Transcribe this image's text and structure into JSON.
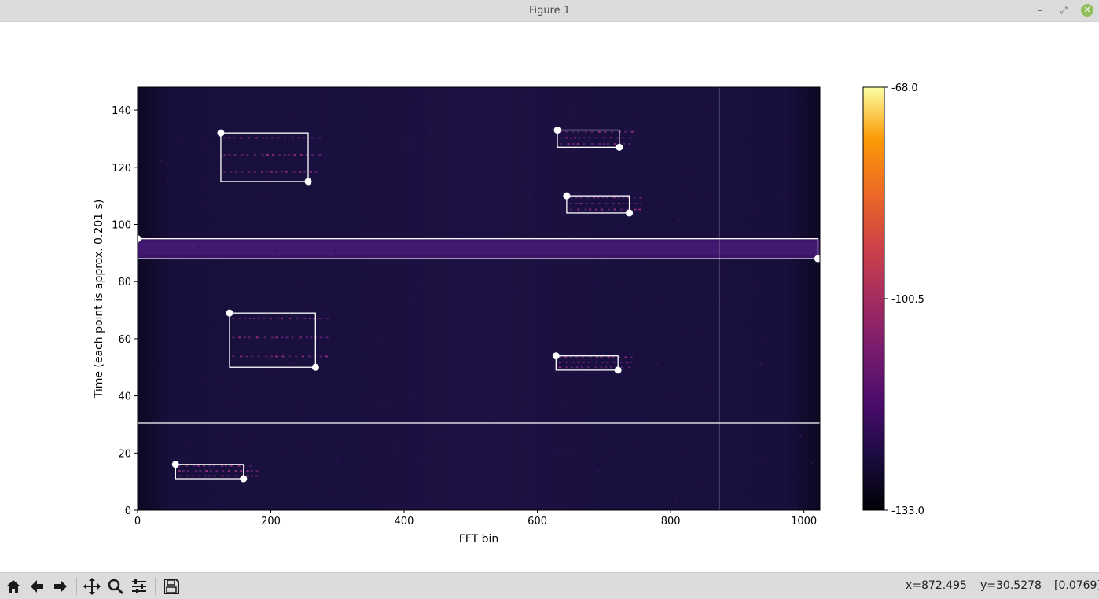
{
  "window": {
    "title": "Figure 1"
  },
  "window_controls": [
    "minimize",
    "maximize",
    "close"
  ],
  "toolbar": {
    "buttons": [
      {
        "name": "home",
        "icon": "home-icon"
      },
      {
        "name": "back",
        "icon": "arrow-left-icon"
      },
      {
        "name": "forward",
        "icon": "arrow-right-icon"
      },
      {
        "name": "pan",
        "icon": "move-icon"
      },
      {
        "name": "zoom",
        "icon": "zoom-icon"
      },
      {
        "name": "configure-subplots",
        "icon": "sliders-icon"
      },
      {
        "name": "save",
        "icon": "save-icon"
      }
    ]
  },
  "status": {
    "x": "x=872.495",
    "y": "y=30.5278",
    "value": "[0.0769]"
  },
  "chart_data": {
    "type": "heatmap",
    "colormap": "inferno",
    "xlabel": "FFT bin",
    "ylabel": "Time (each point is approx. 0.201 s)",
    "xlim": [
      0,
      1024
    ],
    "ylim": [
      0,
      148
    ],
    "xticks": [
      0,
      200,
      400,
      600,
      800,
      1000
    ],
    "yticks": [
      0,
      20,
      40,
      60,
      80,
      100,
      120,
      140
    ],
    "colorbar": {
      "ticks": [
        "-68.0",
        "-100.5",
        "-133.0"
      ],
      "range": [
        -133.0,
        -68.0
      ]
    },
    "bright_band": {
      "y0": 88,
      "y1": 95
    },
    "selection_boxes": [
      {
        "x0": 125,
        "y0": 115,
        "x1": 256,
        "y1": 132
      },
      {
        "x0": 630,
        "y0": 127,
        "x1": 723,
        "y1": 133
      },
      {
        "x0": 644,
        "y0": 104,
        "x1": 738,
        "y1": 110
      },
      {
        "x0": 0,
        "y0": 88,
        "x1": 1021,
        "y1": 95
      },
      {
        "x0": 138,
        "y0": 50,
        "x1": 267,
        "y1": 69
      },
      {
        "x0": 628,
        "y0": 49,
        "x1": 721,
        "y1": 54
      },
      {
        "x0": 57,
        "y0": 11,
        "x1": 159,
        "y1": 16
      }
    ],
    "crosshair": {
      "x": 872.495,
      "y": 30.5278
    }
  }
}
